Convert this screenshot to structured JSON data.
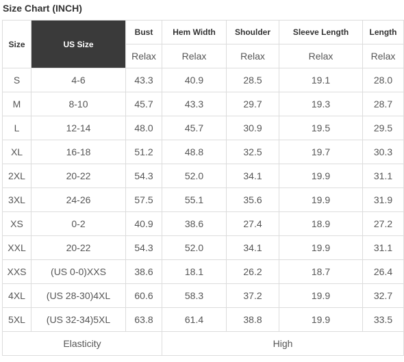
{
  "title": "Size Chart (INCH)",
  "headers": {
    "size": "Size",
    "us_size": "US Size",
    "bust": "Bust",
    "hem_width": "Hem Width",
    "shoulder": "Shoulder",
    "sleeve_length": "Sleeve Length",
    "length": "Length"
  },
  "subheaders": {
    "bust": "Relax",
    "hem_width": "Relax",
    "shoulder": "Relax",
    "sleeve_length": "Relax",
    "length": "Relax"
  },
  "rows": [
    {
      "size": "S",
      "us": "4-6",
      "bust": "43.3",
      "hem": "40.9",
      "shoulder": "28.5",
      "sleeve": "19.1",
      "length": "28.0"
    },
    {
      "size": "M",
      "us": "8-10",
      "bust": "45.7",
      "hem": "43.3",
      "shoulder": "29.7",
      "sleeve": "19.3",
      "length": "28.7"
    },
    {
      "size": "L",
      "us": "12-14",
      "bust": "48.0",
      "hem": "45.7",
      "shoulder": "30.9",
      "sleeve": "19.5",
      "length": "29.5"
    },
    {
      "size": "XL",
      "us": "16-18",
      "bust": "51.2",
      "hem": "48.8",
      "shoulder": "32.5",
      "sleeve": "19.7",
      "length": "30.3"
    },
    {
      "size": "2XL",
      "us": "20-22",
      "bust": "54.3",
      "hem": "52.0",
      "shoulder": "34.1",
      "sleeve": "19.9",
      "length": "31.1"
    },
    {
      "size": "3XL",
      "us": "24-26",
      "bust": "57.5",
      "hem": "55.1",
      "shoulder": "35.6",
      "sleeve": "19.9",
      "length": "31.9"
    },
    {
      "size": "XS",
      "us": "0-2",
      "bust": "40.9",
      "hem": "38.6",
      "shoulder": "27.4",
      "sleeve": "18.9",
      "length": "27.2"
    },
    {
      "size": "XXL",
      "us": "20-22",
      "bust": "54.3",
      "hem": "52.0",
      "shoulder": "34.1",
      "sleeve": "19.9",
      "length": "31.1"
    },
    {
      "size": "XXS",
      "us": "(US 0-0)XXS",
      "bust": "38.6",
      "hem": "18.1",
      "shoulder": "26.2",
      "sleeve": "18.7",
      "length": "26.4"
    },
    {
      "size": "4XL",
      "us": "(US 28-30)4XL",
      "bust": "60.6",
      "hem": "58.3",
      "shoulder": "37.2",
      "sleeve": "19.9",
      "length": "32.7"
    },
    {
      "size": "5XL",
      "us": "(US 32-34)5XL",
      "bust": "63.8",
      "hem": "61.4",
      "shoulder": "38.8",
      "sleeve": "19.9",
      "length": "33.5"
    }
  ],
  "elasticity": {
    "label": "Elasticity",
    "value": "High"
  },
  "colors": {
    "us_size_header_bg": "#3a3a3a",
    "border": "#dcdcdc",
    "text": "#555555"
  }
}
